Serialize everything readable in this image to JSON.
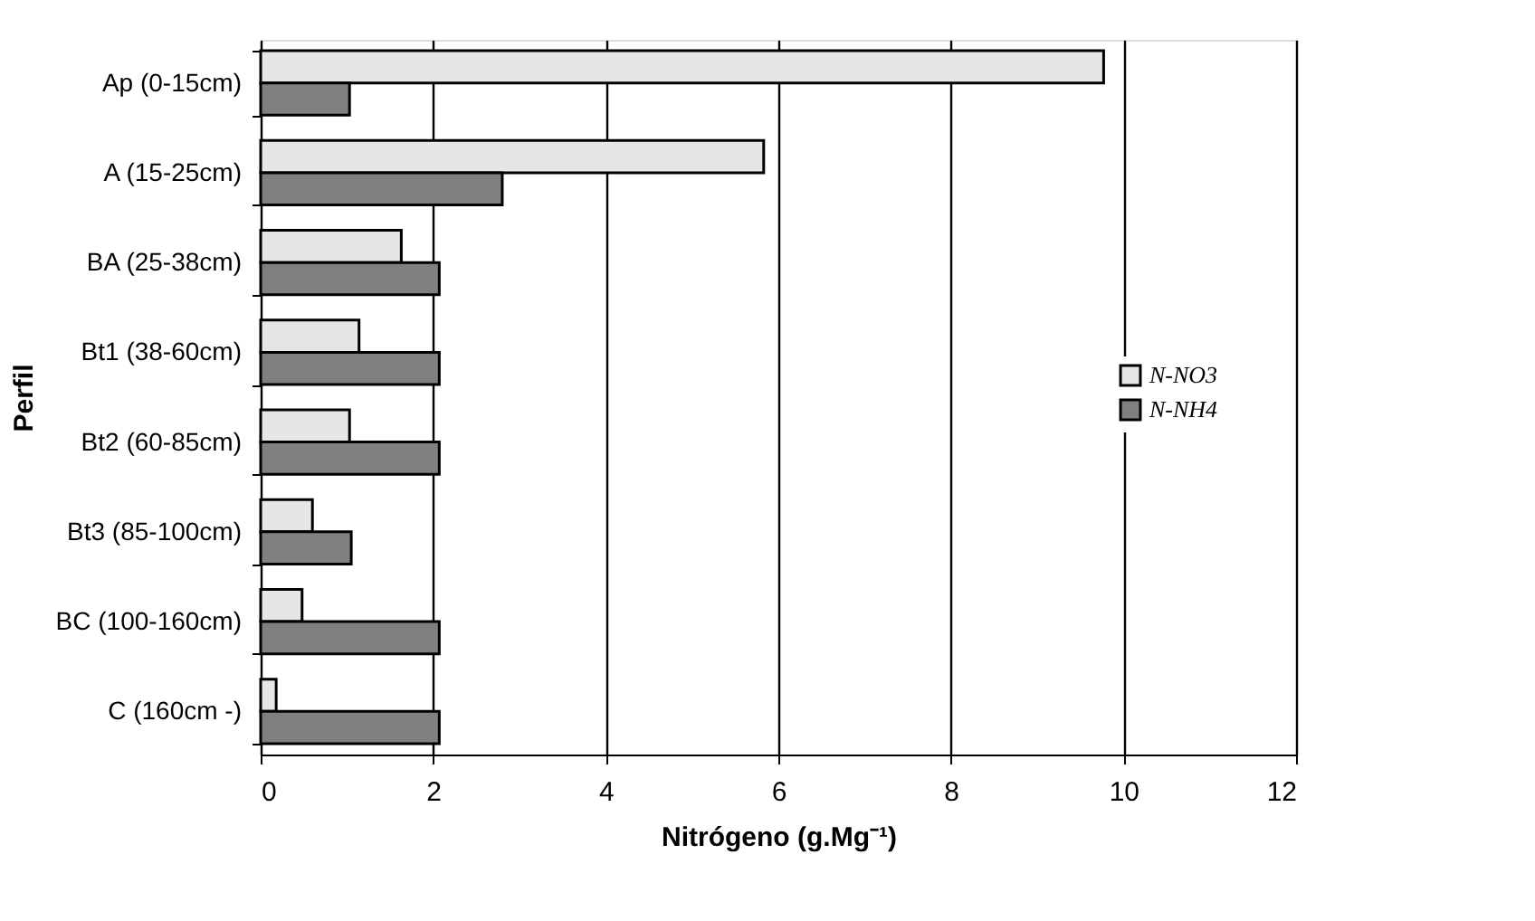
{
  "chart_data": {
    "type": "bar",
    "orientation": "horizontal",
    "xlabel": "Nitrógeno (g.Mg⁻¹)",
    "ylabel": "Perfil",
    "categories": [
      "Ap (0-15cm)",
      "A (15-25cm)",
      "BA (25-38cm)",
      "Bt1 (38-60cm)",
      "Bt2 (60-85cm)",
      "Bt3 (85-100cm)",
      "BC (100-160cm)",
      "C (160cm -)"
    ],
    "series": [
      {
        "name": "N-NO3",
        "color": "#e6e6e6",
        "values": [
          9.77,
          5.83,
          1.63,
          1.14,
          1.03,
          0.6,
          0.48,
          0.18
        ]
      },
      {
        "name": "N-NH4",
        "color": "#808080",
        "values": [
          1.03,
          2.8,
          2.07,
          2.07,
          2.07,
          1.05,
          2.07,
          2.07
        ]
      }
    ],
    "xlim": [
      0,
      12
    ],
    "xticks": [
      0,
      2,
      4,
      6,
      8,
      10,
      12
    ],
    "grid": "x",
    "legend": "right"
  }
}
